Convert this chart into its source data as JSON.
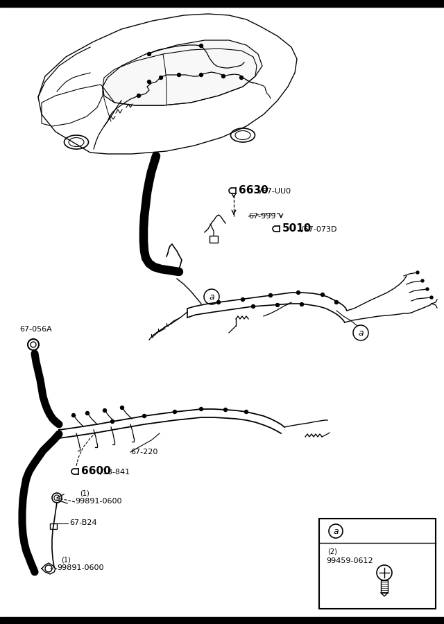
{
  "bg_color": "#ffffff",
  "black": "#000000",
  "white": "#ffffff",
  "labels": {
    "part_6630": "6630",
    "part_6630_sub": "/67-UU0",
    "part_67_999": "67-999",
    "part_5010": "5010",
    "part_5010_sub": "/67-073D",
    "part_67_056A": "67-056A",
    "part_67_220": "67-220",
    "part_6600": "6600",
    "part_6600_sub": "/18-841",
    "part_99891_0600": "99891-0600",
    "part_67_B24": "67-B24",
    "part_99459_0612": "99459-0612",
    "callout_a": "a",
    "qty_1": "(1)",
    "qty_2": "(2)"
  }
}
